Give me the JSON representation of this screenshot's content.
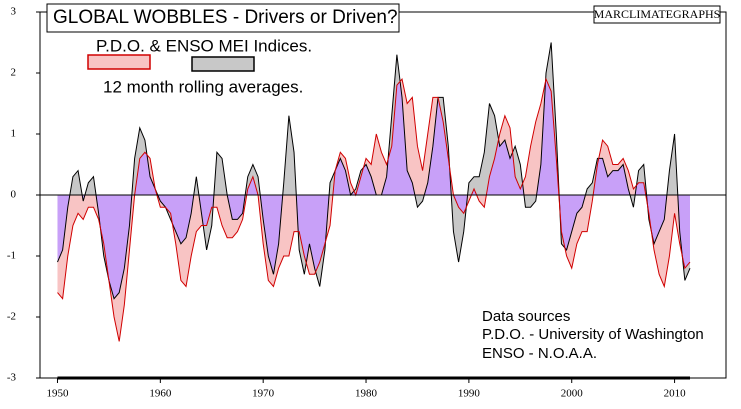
{
  "chart_data": {
    "type": "area",
    "title": "GLOBAL WOBBLES - Drivers or Driven?",
    "watermark": "MARCLIMATEGRAPHS",
    "legend_text": "P.D.O. & ENSO MEI Indices.",
    "subtitle": "12 month rolling averages.",
    "annotations": [
      "Data sources",
      "P.D.O. - University of Washington",
      "ENSO - N.O.A.A."
    ],
    "xlim": [
      1948.3,
      2015
    ],
    "ylim": [
      -3,
      3
    ],
    "xticks": [
      1950,
      1960,
      1970,
      1980,
      1990,
      2000,
      2010
    ],
    "yticks": [
      -3,
      -2,
      -1,
      0,
      1,
      2,
      3
    ],
    "overlap_color": "#c8a0f8",
    "x": [
      1950,
      1950.5,
      1951,
      1951.5,
      1952,
      1952.5,
      1953,
      1953.5,
      1954,
      1954.5,
      1955,
      1955.5,
      1956,
      1956.5,
      1957,
      1957.5,
      1958,
      1958.5,
      1959,
      1959.5,
      1960,
      1960.5,
      1961,
      1961.5,
      1962,
      1962.5,
      1963,
      1963.5,
      1964,
      1964.5,
      1965,
      1965.5,
      1966,
      1966.5,
      1967,
      1967.5,
      1968,
      1968.5,
      1969,
      1969.5,
      1970,
      1970.5,
      1971,
      1971.5,
      1972,
      1972.5,
      1973,
      1973.5,
      1974,
      1974.5,
      1975,
      1975.5,
      1976,
      1976.5,
      1977,
      1977.5,
      1978,
      1978.5,
      1979,
      1979.5,
      1980,
      1980.5,
      1981,
      1981.5,
      1982,
      1982.5,
      1983,
      1983.5,
      1984,
      1984.5,
      1985,
      1985.5,
      1986,
      1986.5,
      1987,
      1987.5,
      1988,
      1988.5,
      1989,
      1989.5,
      1990,
      1990.5,
      1991,
      1991.5,
      1992,
      1992.5,
      1993,
      1993.5,
      1994,
      1994.5,
      1995,
      1995.5,
      1996,
      1996.5,
      1997,
      1997.5,
      1998,
      1998.5,
      1999,
      1999.5,
      2000,
      2000.5,
      2001,
      2001.5,
      2002,
      2002.5,
      2003,
      2003.5,
      2004,
      2004.5,
      2005,
      2005.5,
      2006,
      2006.5,
      2007,
      2007.5,
      2008,
      2008.5,
      2009,
      2009.5,
      2010,
      2010.5,
      2011,
      2011.5
    ],
    "series": [
      {
        "color": "#c8c8c8",
        "line_color": "#000000",
        "values": [
          -1.1,
          -0.9,
          -0.2,
          0.3,
          0.4,
          -0.1,
          0.2,
          0.3,
          -0.3,
          -1.0,
          -1.4,
          -1.7,
          -1.6,
          -1.2,
          -0.5,
          0.6,
          1.1,
          0.9,
          0.3,
          0.1,
          -0.1,
          -0.2,
          -0.4,
          -0.6,
          -0.8,
          -0.7,
          -0.3,
          0.3,
          -0.3,
          -0.9,
          -0.5,
          0.7,
          0.6,
          0.0,
          -0.4,
          -0.4,
          -0.3,
          0.3,
          0.5,
          0.3,
          -0.4,
          -1.0,
          -1.3,
          -0.8,
          0.2,
          1.3,
          0.7,
          -0.9,
          -1.3,
          -0.8,
          -1.2,
          -1.5,
          -0.9,
          0.2,
          0.4,
          0.6,
          0.4,
          0.0,
          0.1,
          0.4,
          0.5,
          0.3,
          0.0,
          0.0,
          0.3,
          1.3,
          2.3,
          1.6,
          0.4,
          0.2,
          -0.2,
          -0.1,
          0.2,
          0.8,
          1.6,
          1.6,
          0.8,
          -0.6,
          -1.1,
          -0.6,
          0.2,
          0.3,
          0.3,
          0.7,
          1.5,
          1.3,
          0.8,
          0.9,
          0.6,
          0.8,
          0.5,
          -0.2,
          -0.2,
          -0.1,
          0.5,
          2.0,
          2.5,
          1.0,
          -0.8,
          -0.9,
          -0.6,
          -0.3,
          -0.2,
          0.1,
          0.2,
          0.6,
          0.6,
          0.3,
          0.4,
          0.4,
          0.5,
          0.1,
          -0.2,
          0.4,
          0.5,
          -0.4,
          -0.8,
          -0.6,
          -0.4,
          0.4,
          1.0,
          -0.6,
          -1.4,
          -1.2
        ]
      },
      {
        "color": "#f8c4c4",
        "line_color": "#d00000",
        "values": [
          -1.6,
          -1.7,
          -1.0,
          -0.5,
          -0.3,
          -0.4,
          -0.2,
          -0.2,
          -0.4,
          -0.8,
          -1.4,
          -2.0,
          -2.4,
          -1.8,
          -0.9,
          0.0,
          0.6,
          0.7,
          0.6,
          0.1,
          -0.2,
          -0.2,
          -0.3,
          -0.8,
          -1.4,
          -1.5,
          -1.0,
          -0.6,
          -0.5,
          -0.5,
          -0.2,
          -0.2,
          -0.5,
          -0.7,
          -0.7,
          -0.6,
          -0.4,
          0.1,
          0.3,
          0.0,
          -0.8,
          -1.4,
          -1.5,
          -1.2,
          -1.0,
          -1.0,
          -0.6,
          -0.6,
          -1.0,
          -1.3,
          -1.3,
          -1.1,
          -0.8,
          -0.5,
          0.4,
          0.7,
          0.6,
          0.2,
          0.0,
          0.3,
          0.6,
          0.5,
          1.0,
          0.7,
          0.5,
          0.8,
          1.8,
          1.9,
          1.5,
          1.6,
          0.8,
          0.4,
          1.0,
          1.6,
          1.6,
          1.2,
          0.6,
          0.0,
          -0.2,
          -0.3,
          -0.1,
          0.1,
          -0.1,
          -0.2,
          0.3,
          0.6,
          1.0,
          1.3,
          1.1,
          0.3,
          0.1,
          0.3,
          0.8,
          1.2,
          1.5,
          1.9,
          1.7,
          0.6,
          -0.6,
          -1.0,
          -1.2,
          -0.8,
          -0.6,
          -0.6,
          -0.1,
          0.5,
          0.9,
          0.8,
          0.5,
          0.5,
          0.6,
          0.4,
          0.1,
          0.2,
          0.2,
          -0.3,
          -0.9,
          -1.3,
          -1.5,
          -1.0,
          -0.3,
          -0.8,
          -1.2,
          -1.1
        ]
      }
    ]
  }
}
